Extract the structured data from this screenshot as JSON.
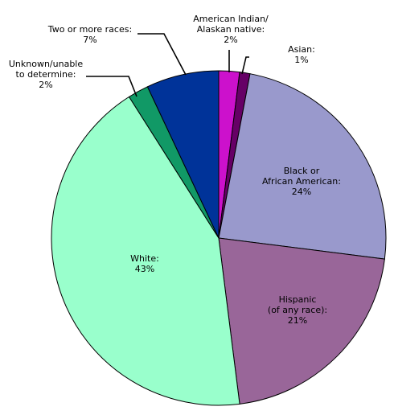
{
  "chart_data": {
    "type": "pie",
    "start_angle_deg": 0,
    "direction": "clockwise",
    "legend": "none",
    "slices": [
      {
        "label_lines": [
          "American Indian/",
          "Alaskan native:",
          "2%"
        ],
        "value": 2,
        "color": "#cc11cc"
      },
      {
        "label_lines": [
          "Asian:",
          "1%"
        ],
        "value": 1,
        "color": "#660066"
      },
      {
        "label_lines": [
          "Black or",
          "African American:",
          "24%"
        ],
        "value": 24,
        "color": "#9999cc"
      },
      {
        "label_lines": [
          "Hispanic",
          "(of any race):",
          "21%"
        ],
        "value": 21,
        "color": "#996699"
      },
      {
        "label_lines": [
          "White:",
          "43%"
        ],
        "value": 43,
        "color": "#99ffcc"
      },
      {
        "label_lines": [
          "Unknown/unable",
          "to determine:",
          "2%"
        ],
        "value": 2,
        "color": "#119966"
      },
      {
        "label_lines": [
          "Two or more races:",
          "7%"
        ],
        "value": 7,
        "color": "#003399"
      }
    ]
  }
}
